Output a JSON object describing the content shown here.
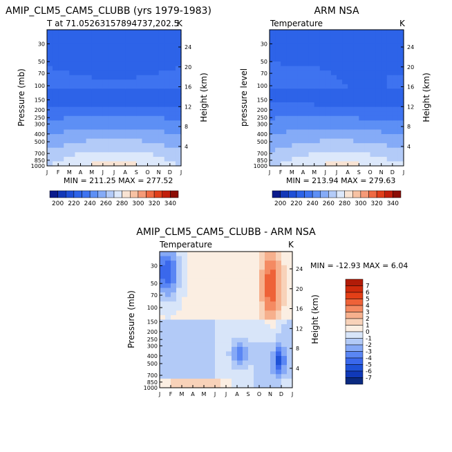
{
  "colors": {
    "temperature": [
      "#0b1b8c",
      "#1338b8",
      "#1f4fd6",
      "#2d63e8",
      "#3e73f0",
      "#5d8ff5",
      "#85abf7",
      "#b3cbf8",
      "#dce8fb",
      "#f8e3d3",
      "#f7c2a3",
      "#f59a78",
      "#ef6a43",
      "#e03f1b",
      "#c21f0c",
      "#8c0d05"
    ],
    "difference": [
      "#0b2a80",
      "#1039b8",
      "#1f52d8",
      "#3a68ec",
      "#5a86f4",
      "#86a9f6",
      "#b2caf7",
      "#d8e5f9",
      "#fbeee2",
      "#f8d2b9",
      "#f6b08d",
      "#f48a62",
      "#ee6238",
      "#e33f17",
      "#cf2a0c",
      "#b11b08"
    ]
  },
  "chart_data": [
    {
      "type": "heatmap",
      "title": "AMIP_CLM5_CAM5_CLUBB (yrs 1979-1983)",
      "subtitle_left": "T at 71.05263157894737,202.5",
      "subtitle_right": "K",
      "xlabel": "",
      "ylabel": "Pressure (mb)",
      "ylabel_right": "Height (km)",
      "x_ticks": [
        "J",
        "F",
        "M",
        "A",
        "M",
        "J",
        "J",
        "A",
        "S",
        "O",
        "N",
        "D",
        "J"
      ],
      "y_ticks": [
        30,
        50,
        70,
        100,
        150,
        200,
        250,
        300,
        400,
        500,
        700,
        850,
        1000
      ],
      "y_ticks_right": [
        24,
        20,
        16,
        12,
        8,
        4
      ],
      "ylim": [
        1000,
        20
      ],
      "stats": "MIN = 211.25   MAX = 277.52",
      "min": 211.25,
      "max": 277.52,
      "colorbar_labels": [
        "200",
        "220",
        "240",
        "260",
        "280",
        "300",
        "320",
        "340"
      ],
      "levels": [
        195,
        200,
        210,
        220,
        230,
        240,
        250,
        260,
        270,
        280,
        290,
        300,
        310,
        320,
        330,
        340
      ]
    },
    {
      "type": "heatmap",
      "title": "ARM NSA",
      "subtitle_left": "Temperature",
      "subtitle_right": "K",
      "xlabel": "",
      "ylabel": "pressure level",
      "ylabel_right": "Height (km)",
      "x_ticks": [
        "J",
        "F",
        "M",
        "A",
        "M",
        "J",
        "J",
        "A",
        "S",
        "O",
        "N",
        "D",
        "J"
      ],
      "y_ticks": [
        30,
        50,
        70,
        100,
        150,
        200,
        250,
        300,
        400,
        500,
        700,
        850,
        1000
      ],
      "y_ticks_right": [
        24,
        20,
        16,
        12,
        8,
        4
      ],
      "ylim": [
        1000,
        20
      ],
      "stats": "MIN = 213.94   MAX = 279.63",
      "min": 213.94,
      "max": 279.63,
      "colorbar_labels": [
        "200",
        "220",
        "240",
        "260",
        "280",
        "300",
        "320",
        "340"
      ],
      "levels": [
        195,
        200,
        210,
        220,
        230,
        240,
        250,
        260,
        270,
        280,
        290,
        300,
        310,
        320,
        330,
        340
      ]
    },
    {
      "type": "heatmap",
      "title": "AMIP_CLM5_CAM5_CLUBB - ARM NSA",
      "subtitle_left": "Temperature",
      "subtitle_right": "K",
      "xlabel": "",
      "ylabel": "Pressure (mb)",
      "ylabel_right": "Height (km)",
      "x_ticks": [
        "J",
        "F",
        "M",
        "A",
        "M",
        "J",
        "J",
        "A",
        "S",
        "O",
        "N",
        "D",
        "J"
      ],
      "y_ticks": [
        30,
        50,
        70,
        100,
        150,
        200,
        250,
        300,
        400,
        500,
        700,
        850,
        1000
      ],
      "y_ticks_right": [
        24,
        20,
        16,
        12,
        8,
        4
      ],
      "ylim": [
        1000,
        20
      ],
      "stats": "MIN = -12.93   MAX =   6.04",
      "min": -12.93,
      "max": 6.04,
      "colorbar_labels": [
        "-7",
        "-6",
        "-5",
        "-4",
        "-3",
        "-2",
        "-1",
        "0",
        "1",
        "2",
        "3",
        "4",
        "5",
        "6",
        "7"
      ]
    }
  ]
}
